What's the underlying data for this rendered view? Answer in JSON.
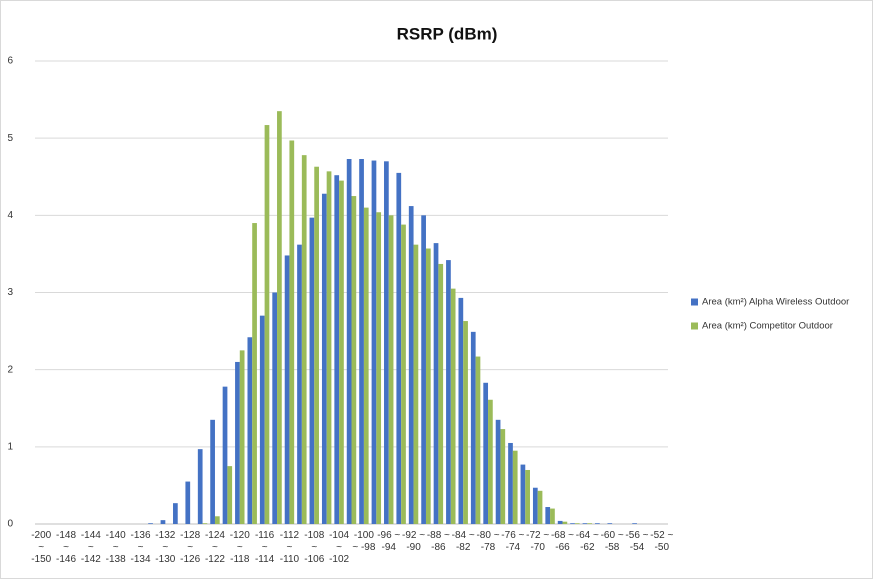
{
  "chart_data": {
    "type": "bar",
    "title": "RSRP (dBm)",
    "categories": [
      "-200 ~ -150",
      null,
      "-148 ~ -146",
      null,
      "-144 ~ -142",
      null,
      "-140 ~ -138",
      null,
      "-136 ~ -134",
      null,
      "-132 ~ -130",
      null,
      "-128 ~ -126",
      null,
      "-124 ~ -122",
      null,
      "-120 ~ -118",
      null,
      "-116 ~ -114",
      null,
      "-112 ~ -110",
      null,
      "-108 ~ -106",
      null,
      "-104 ~ -102",
      null,
      "-100 ~ -98",
      null,
      "-96 ~ -94",
      null,
      "-92 ~ -90",
      null,
      "-88 ~ -86",
      null,
      "-84 ~ -82",
      null,
      "-80 ~ -78",
      null,
      "-76 ~ -74",
      null,
      "-72 ~ -70",
      null,
      "-68 ~ -66",
      null,
      "-64 ~ -62",
      null,
      "-60 ~ -58",
      null,
      "-56 ~ -54",
      null,
      "-52 ~ -50"
    ],
    "series": [
      {
        "name": "Area (km²) Alpha Wireless Outdoor",
        "color": "#4472c4",
        "values": [
          0,
          0,
          0,
          0,
          0,
          0,
          0,
          0,
          0,
          0.01,
          0.05,
          0.27,
          0.55,
          0.97,
          1.35,
          1.78,
          2.1,
          2.42,
          2.7,
          3.0,
          3.48,
          3.62,
          3.97,
          4.28,
          4.52,
          4.73,
          4.73,
          4.71,
          4.7,
          4.55,
          4.12,
          4.0,
          3.64,
          3.42,
          2.93,
          2.49,
          1.83,
          1.35,
          1.05,
          0.77,
          0.47,
          0.22,
          0.04,
          0.01,
          0.01,
          0.01,
          0.01,
          0,
          0.01,
          0,
          0
        ]
      },
      {
        "name": "Area (km²) Competitor Outdoor",
        "color": "#9bbb59",
        "values": [
          0,
          0,
          0,
          0,
          0,
          0,
          0,
          0,
          0,
          0,
          0,
          0,
          0,
          0.01,
          0.1,
          0.75,
          2.25,
          3.9,
          5.17,
          5.35,
          4.97,
          4.78,
          4.63,
          4.57,
          4.45,
          4.25,
          4.1,
          4.04,
          4.0,
          3.88,
          3.62,
          3.57,
          3.37,
          3.05,
          2.63,
          2.17,
          1.61,
          1.23,
          0.95,
          0.7,
          0.43,
          0.2,
          0.03,
          0.01,
          0.01,
          0,
          0,
          0,
          0,
          0,
          0
        ]
      }
    ],
    "ylim": [
      0,
      6
    ],
    "yticks": [
      0,
      1,
      2,
      3,
      4,
      5,
      6
    ],
    "grid": true,
    "legend": "right"
  }
}
